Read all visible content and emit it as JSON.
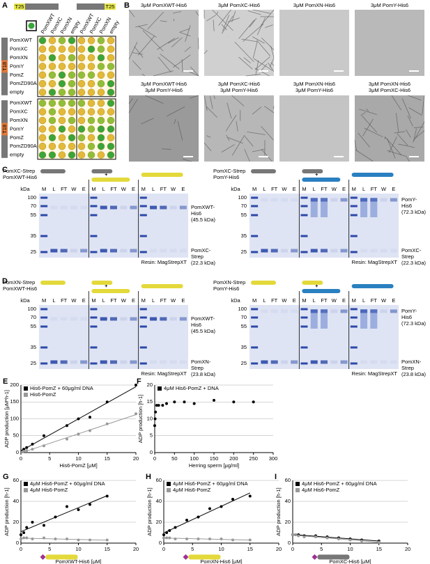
{
  "panel_a": {
    "label": "A",
    "header": [
      "T25",
      "T25"
    ],
    "columns": [
      "PomXWT",
      "PomXC",
      "PomXN",
      "empty",
      "PomXWT",
      "PomXC",
      "PomXN",
      "empty"
    ],
    "groups": [
      {
        "tag": "T18",
        "rows": [
          "PomXWT",
          "PomXC",
          "PomXN",
          "PomY",
          "PomZ",
          "PomZD90A",
          "empty"
        ]
      },
      {
        "tag": "T18",
        "rows": [
          "PomXWT",
          "PomXC",
          "PomXN",
          "PomY",
          "PomZ",
          "PomZD90A",
          "empty"
        ]
      }
    ]
  },
  "panel_b": {
    "label": "B",
    "images": [
      [
        "3μM PomXWT-His6"
      ],
      [
        "3μM PomXC-His6"
      ],
      [
        "3μM PomXN-His6"
      ],
      [
        "3μM PomY-His6"
      ],
      [
        "3μM PomXWT-His6",
        "3μM PomY-His6"
      ],
      [
        "3μM PomXC-His6",
        "3μM PomY-His6"
      ],
      [
        "3μM PomXN-His6",
        "3μM PomY-His6"
      ],
      [
        "3μM PomXN-His6",
        "3μM PomXC-His6"
      ]
    ]
  },
  "panel_c": {
    "label": "C",
    "halves": [
      {
        "proteins": [
          "PomXC-Strep",
          "PomXWT-His6"
        ],
        "unit": "kDa",
        "markers": [
          100,
          70,
          55,
          35,
          25
        ],
        "lanes": [
          "M",
          "L",
          "FT",
          "W",
          "E"
        ],
        "plus": "+",
        "bands": [
          [
            "PomXWT-",
            "His6",
            "(45.5 kDa)"
          ],
          [
            "PomXC-",
            "Strep",
            "(22.3 kDa)"
          ]
        ],
        "resin": "Resin: MagStrepXT"
      },
      {
        "proteins": [
          "PomXC-Strep",
          "PomY-His6"
        ],
        "unit": "kDa",
        "markers": [
          100,
          70,
          55,
          35,
          25
        ],
        "lanes": [
          "M",
          "L",
          "FT",
          "W",
          "E"
        ],
        "plus": "+",
        "bands": [
          [
            "PomY-",
            "His6",
            "(72.3 kDa)"
          ],
          [
            "PomXC-",
            "Strep",
            "(22.3 kDa)"
          ]
        ],
        "resin": "Resin: MagStrepXT"
      }
    ]
  },
  "panel_d": {
    "label": "D",
    "halves": [
      {
        "proteins": [
          "PomXN-Strep",
          "PomXWT-His6"
        ],
        "unit": "kDa",
        "markers": [
          100,
          70,
          55,
          35,
          25
        ],
        "lanes": [
          "M",
          "L",
          "FT",
          "W",
          "E"
        ],
        "plus": "+",
        "bands": [
          [
            "PomXWT-",
            "His6",
            "(45.5 kDa)"
          ],
          [
            "PomXN-",
            "Strep",
            "(23.8 kDa)"
          ]
        ],
        "resin": "Resin: MagStrepXT"
      },
      {
        "proteins": [
          "PomXN-Strep",
          "PomY-His6"
        ],
        "unit": "kDa",
        "markers": [
          100,
          70,
          55,
          35,
          25
        ],
        "lanes": [
          "M",
          "L",
          "FT",
          "W",
          "E"
        ],
        "plus": "+",
        "bands": [
          [
            "PomY-",
            "His6",
            "(72.3 kDa)"
          ],
          [
            "PomXN-",
            "Strep",
            "(23.8 kDa)"
          ]
        ],
        "resin": "Resin: MagStrepXT"
      }
    ]
  },
  "chart_data": [
    {
      "type": "scatter",
      "panel_label": "E",
      "xlabel": "His6-PomZ [μM]",
      "ylabel": "ADP production [μM*h-1]",
      "xlim": [
        0,
        20
      ],
      "ylim": [
        0,
        200
      ],
      "xticks": [
        0,
        5,
        10,
        15,
        20
      ],
      "yticks": [
        0,
        50,
        100,
        150,
        200
      ],
      "grid": true,
      "series": [
        {
          "name": "His6-PomZ + 60μg/ml DNA",
          "color": "#000000",
          "trend_line": true,
          "x": [
            0.25,
            0.5,
            1,
            2,
            4,
            8,
            10,
            12,
            15,
            20
          ],
          "values": [
            5,
            10,
            15,
            25,
            50,
            80,
            100,
            105,
            150,
            200
          ]
        },
        {
          "name": "His6-PomZ",
          "color": "#999999",
          "trend_line": true,
          "x": [
            0.25,
            0.5,
            1,
            2,
            4,
            8,
            10,
            12,
            15,
            20
          ],
          "values": [
            2,
            4,
            6,
            10,
            20,
            40,
            55,
            65,
            85,
            115
          ]
        }
      ]
    },
    {
      "type": "scatter",
      "panel_label": "F",
      "xlabel": "Herring sperm [μg/ml]",
      "ylabel": "ADP production [h-1]",
      "xlim": [
        0,
        300
      ],
      "ylim": [
        0,
        20
      ],
      "xticks": [
        0,
        50,
        100,
        150,
        200,
        250,
        300
      ],
      "yticks": [
        0,
        5,
        10,
        15,
        20
      ],
      "grid": true,
      "series": [
        {
          "name": "4μM His6-PomZ + DNA",
          "color": "#000000",
          "trend_line": false,
          "x": [
            0,
            1,
            2,
            5,
            10,
            20,
            30,
            50,
            75,
            100,
            150,
            200,
            250
          ],
          "values": [
            8,
            10,
            12,
            14,
            14,
            14,
            14.5,
            15,
            15,
            14.5,
            15.5,
            15,
            15
          ]
        }
      ]
    },
    {
      "type": "scatter",
      "panel_label": "G",
      "xlabel": "PomXWT-His6 [μM]",
      "ylabel": "ADP production [h-1]",
      "xlim": [
        0,
        20
      ],
      "ylim": [
        0,
        60
      ],
      "xticks": [
        0,
        5,
        10,
        15,
        20
      ],
      "yticks": [
        0,
        20,
        40,
        60
      ],
      "grid": true,
      "series": [
        {
          "name": "4μM His6-PomZ + 60μg/ml DNA",
          "color": "#000000",
          "trend_line": true,
          "x": [
            0,
            0.5,
            1,
            2,
            4,
            6,
            8,
            10,
            12,
            15
          ],
          "values": [
            8,
            10,
            15,
            20,
            17,
            25,
            35,
            32,
            37,
            45
          ]
        },
        {
          "name": "4μM His6-PomZ",
          "color": "#999999",
          "trend_line": true,
          "x": [
            0,
            0.5,
            1,
            2,
            4,
            6,
            8,
            10,
            12,
            15
          ],
          "values": [
            4,
            5,
            5,
            4,
            5,
            4,
            4,
            3,
            3,
            3
          ]
        }
      ]
    },
    {
      "type": "scatter",
      "panel_label": "H",
      "xlabel": "PomXN-His6 [μM]",
      "ylabel": "ADP production [h-1]",
      "xlim": [
        0,
        20
      ],
      "ylim": [
        0,
        60
      ],
      "xticks": [
        0,
        5,
        10,
        15,
        20
      ],
      "yticks": [
        0,
        20,
        40,
        60
      ],
      "grid": true,
      "series": [
        {
          "name": "4μM His6-PomZ + 60μg/ml DNA",
          "color": "#000000",
          "trend_line": true,
          "x": [
            0,
            0.5,
            1,
            2,
            4,
            6,
            8,
            10,
            12,
            15
          ],
          "values": [
            8,
            10,
            12,
            15,
            22,
            25,
            33,
            35,
            42,
            45
          ]
        },
        {
          "name": "4μM His6-PomZ",
          "color": "#999999",
          "trend_line": true,
          "x": [
            0,
            0.5,
            1,
            2,
            4,
            6,
            8,
            10,
            12,
            15
          ],
          "values": [
            5,
            5,
            5,
            4,
            4,
            4,
            4,
            4,
            3,
            3
          ]
        }
      ]
    },
    {
      "type": "scatter",
      "panel_label": "I",
      "xlabel": "PomXC-His6 [μM]",
      "ylabel": "ADP production [h-1]",
      "xlim": [
        0,
        20
      ],
      "ylim": [
        0,
        60
      ],
      "xticks": [
        0,
        5,
        10,
        15,
        20
      ],
      "yticks": [
        0,
        20,
        40,
        60
      ],
      "grid": true,
      "series": [
        {
          "name": "4μM His6-PomZ + 60μg/ml DNA",
          "color": "#000000",
          "trend_line": true,
          "x": [
            0,
            0.5,
            1,
            2,
            4,
            6,
            8,
            10,
            12,
            15
          ],
          "values": [
            8,
            8,
            8,
            7,
            7,
            6,
            5,
            4,
            3,
            2
          ]
        },
        {
          "name": "4μM His6-PomZ",
          "color": "#999999",
          "trend_line": true,
          "x": [
            0,
            0.5,
            1,
            2,
            4,
            6,
            8,
            10,
            12,
            15
          ],
          "values": [
            8,
            8,
            7,
            6,
            6,
            5,
            4,
            3,
            2,
            1
          ]
        }
      ]
    }
  ]
}
